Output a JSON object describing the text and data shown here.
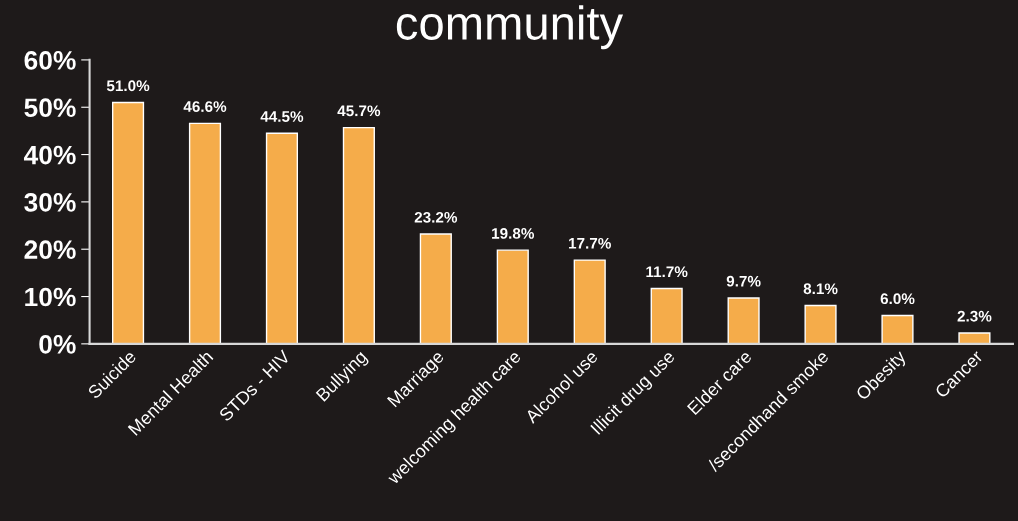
{
  "chart_data": {
    "type": "bar",
    "title": "community",
    "categories": [
      "Suicide",
      "Mental Health",
      "STDs - HIV",
      "Bullying",
      "Marriage",
      "welcoming health care",
      "Alcohol use",
      "Illicit drug use",
      "Elder care",
      "/secondhand smoke",
      "Obesity",
      "Cancer"
    ],
    "values": [
      51.0,
      46.6,
      44.5,
      45.7,
      23.2,
      19.8,
      17.7,
      11.7,
      9.7,
      8.1,
      6.0,
      2.3
    ],
    "value_labels": [
      "51.0%",
      "46.6%",
      "44.5%",
      "45.7%",
      "23.2%",
      "19.8%",
      "17.7%",
      "11.7%",
      "9.7%",
      "8.1%",
      "6.0%",
      "2.3%"
    ],
    "color": "#f5ac4a",
    "ylim": [
      0,
      60
    ],
    "yticks": [
      {
        "value": 0,
        "label": "0%"
      },
      {
        "value": 10,
        "label": "10%"
      },
      {
        "value": 20,
        "label": "20%"
      },
      {
        "value": 30,
        "label": "30%"
      },
      {
        "value": 40,
        "label": "40%"
      },
      {
        "value": 50,
        "label": "50%"
      },
      {
        "value": 60,
        "label": "60%"
      }
    ],
    "grid": false,
    "legend": false
  }
}
